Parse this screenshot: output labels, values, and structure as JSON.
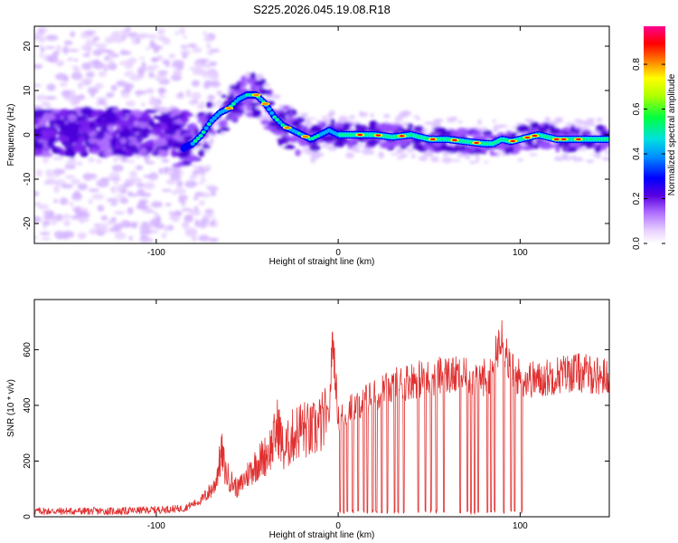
{
  "title": "S225.2026.045.19.08.R18",
  "chart_data": [
    {
      "type": "heatmap",
      "xlabel": "Height of straight line (km)",
      "ylabel": "Frequency (Hz)",
      "xlim": [
        -167,
        149
      ],
      "ylim": [
        -24.5,
        24.5
      ],
      "xticks": [
        -100,
        0,
        100
      ],
      "yticks": [
        -20,
        -10,
        0,
        10,
        20
      ],
      "colorbar": {
        "label": "Normalized spectral amplitude",
        "range": [
          0.0,
          0.97
        ],
        "ticks": [
          0.0,
          0.2,
          0.4,
          0.6,
          0.8
        ],
        "colors": [
          "#f5e6ff",
          "#d9b3ff",
          "#9b59f5",
          "#3c00d6",
          "#0000ff",
          "#00c8ff",
          "#00ff80",
          "#ffff00",
          "#ff8000",
          "#ff0000",
          "#ff0080"
        ]
      },
      "ridge": {
        "x": [
          -85,
          -80,
          -75,
          -70,
          -65,
          -60,
          -55,
          -50,
          -45,
          -40,
          -35,
          -30,
          -25,
          -20,
          -15,
          -10,
          -5,
          0,
          10,
          20,
          30,
          40,
          50,
          60,
          70,
          80,
          85,
          90,
          95,
          100,
          110,
          120,
          130,
          140,
          149
        ],
        "freq": [
          -3,
          -2,
          0,
          3,
          5,
          6,
          8,
          9,
          9,
          7,
          4,
          2,
          1,
          0,
          -1,
          0,
          1,
          0,
          0,
          0,
          -0.5,
          0,
          -1,
          -1,
          -1.5,
          -2,
          -2,
          -1,
          -1.5,
          -1,
          0,
          -1,
          -1,
          -1,
          -1
        ]
      }
    },
    {
      "type": "line",
      "xlabel": "Height of straight line (km)",
      "ylabel": "SNR (10 * v/v)",
      "xlim": [
        -167,
        149
      ],
      "ylim": [
        0,
        780
      ],
      "xticks": [
        -100,
        0,
        100
      ],
      "yticks": [
        0,
        200,
        400,
        600
      ],
      "series": [
        {
          "color": "#e03030",
          "x": [
            -167,
            -140,
            -120,
            -100,
            -85,
            -75,
            -68,
            -64,
            -62,
            -58,
            -55,
            -50,
            -45,
            -40,
            -36,
            -33,
            -30,
            -25,
            -20,
            -15,
            -10,
            -5,
            -3,
            0,
            5,
            10,
            20,
            30,
            40,
            50,
            60,
            70,
            80,
            85,
            88,
            90,
            92,
            95,
            100,
            110,
            120,
            130,
            140,
            149
          ],
          "values": [
            20,
            20,
            20,
            25,
            30,
            60,
            110,
            230,
            160,
            120,
            100,
            150,
            190,
            220,
            260,
            330,
            230,
            290,
            320,
            300,
            330,
            360,
            650,
            350,
            380,
            400,
            440,
            470,
            490,
            500,
            510,
            500,
            500,
            520,
            620,
            700,
            600,
            520,
            500,
            490,
            510,
            520,
            510,
            500
          ]
        }
      ],
      "dropouts_x": [
        1,
        3,
        5,
        8,
        11,
        14,
        16,
        19,
        21,
        24,
        27,
        31,
        33,
        36,
        44,
        48,
        51,
        54,
        58,
        67,
        71,
        73,
        75,
        77,
        82,
        84,
        86,
        91,
        95,
        97,
        101
      ]
    }
  ]
}
